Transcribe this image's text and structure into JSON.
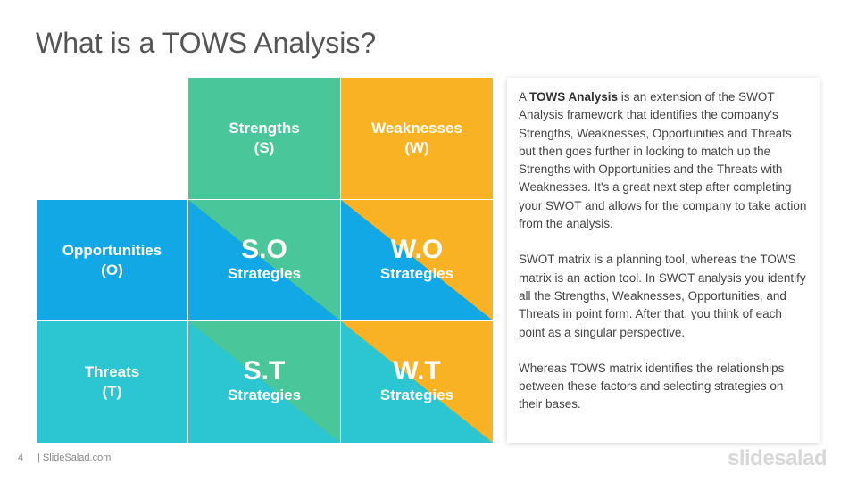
{
  "title": "What is a TOWS Analysis?",
  "colors": {
    "green": "#4ac79a",
    "orange": "#f9b224",
    "blue": "#12a8e6",
    "teal": "#2cc6d2"
  },
  "matrix": {
    "strengths": {
      "label": "Strengths",
      "code": "(S)"
    },
    "weaknesses": {
      "label": "Weaknesses",
      "code": "(W)"
    },
    "opportunities": {
      "label": "Opportunities",
      "code": "(O)"
    },
    "threats": {
      "label": "Threats",
      "code": "(T)"
    },
    "so": {
      "code": "S.O",
      "sub": "Strategies"
    },
    "wo": {
      "code": "W.O",
      "sub": "Strategies"
    },
    "st": {
      "code": "S.T",
      "sub": "Strategies"
    },
    "wt": {
      "code": "W.T",
      "sub": "Strategies"
    }
  },
  "description": {
    "p1_bold": "TOWS Analysis",
    "p1_prefix": "A ",
    "p1_rest": " is an extension of the SWOT Analysis framework that identifies the company's Strengths, Weaknesses,  Opportunities and Threats but then goes further in looking to match up the Strengths with Opportunities and the Threats with Weaknesses.  It's a great next step after completing your SWOT and allows for the company to take action from the analysis.",
    "p2": "SWOT matrix is a planning tool, whereas the TOWS matrix is an action tool. In SWOT analysis you identify all the Strengths, Weaknesses, Opportunities, and Threats in point form. After that, you think of each point as a singular perspective.",
    "p3": "Whereas TOWS matrix identifies the relationships between these factors and selecting strategies on their bases."
  },
  "footer": {
    "page_number": "4",
    "site": "| SlideSalad.com",
    "brand": "slidesalad"
  }
}
